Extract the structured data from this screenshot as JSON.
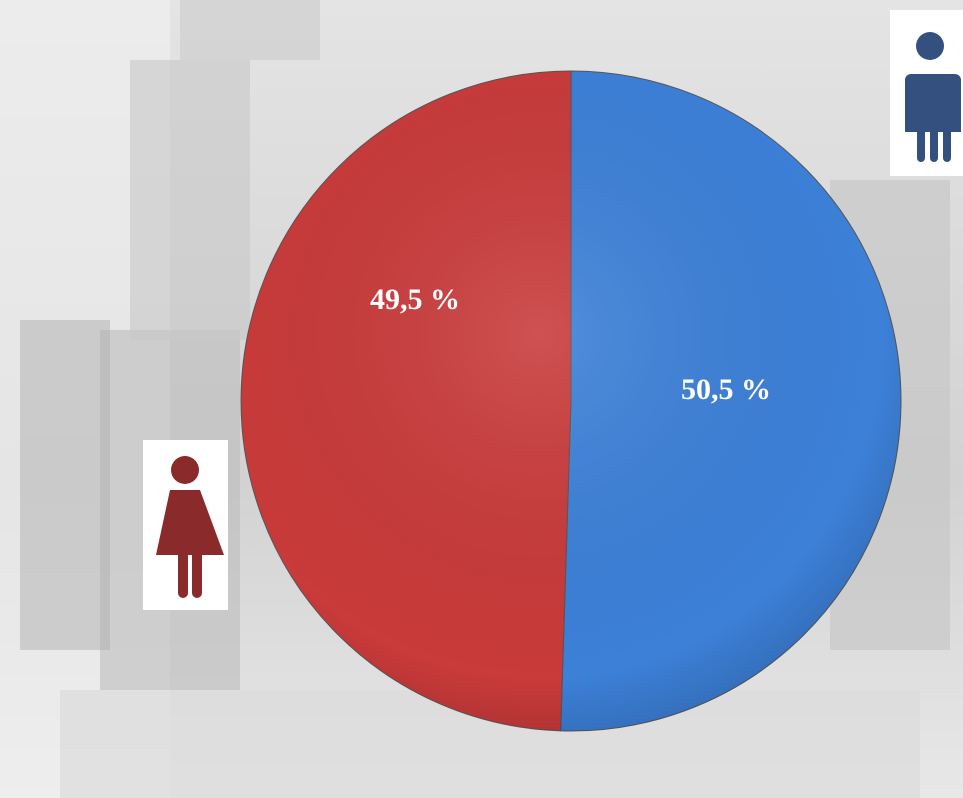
{
  "chart_data": {
    "type": "pie",
    "values": [
      50.5,
      49.5
    ],
    "value_labels": [
      "50,5 %",
      "49,5 %"
    ],
    "colors": [
      "#3c80d8",
      "#c93a3a"
    ]
  }
}
